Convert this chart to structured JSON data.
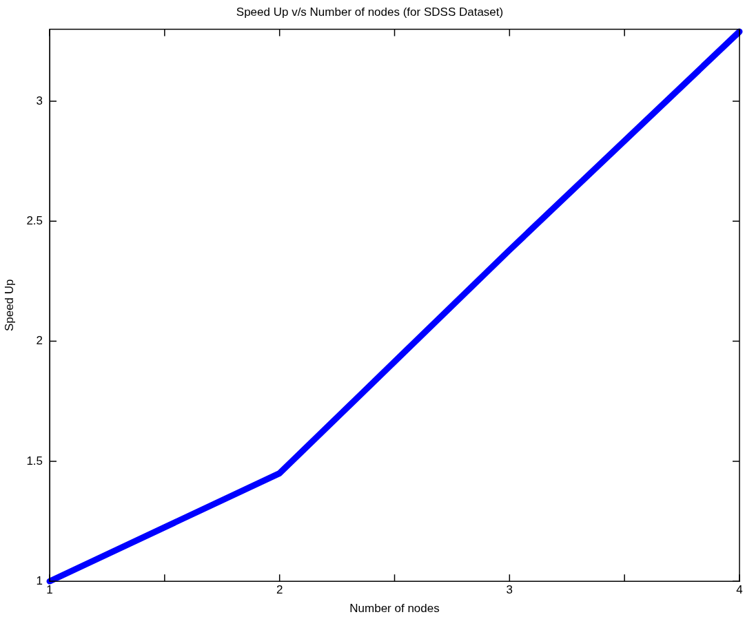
{
  "chart_data": {
    "type": "line",
    "title": "Speed Up v/s Number of nodes (for SDSS Dataset)",
    "xlabel": "Number of nodes",
    "ylabel": "Speed Up",
    "x": [
      1,
      2,
      3,
      4
    ],
    "series": [
      {
        "color": "#0000ff",
        "values": [
          1,
          1.45,
          2.38,
          3.29
        ]
      }
    ],
    "xlim": [
      1,
      4
    ],
    "xticks": [
      1,
      {
        "value": 1.5,
        "label": null
      },
      2,
      {
        "value": 2.5,
        "label": null
      },
      3,
      {
        "value": 3.5,
        "label": null
      },
      4
    ],
    "ylim": [
      1,
      3.3
    ],
    "yticks": [
      1,
      1.5,
      2,
      2.5,
      3
    ],
    "grid": false,
    "legend": false,
    "marker": "none",
    "line_style": "solid"
  }
}
